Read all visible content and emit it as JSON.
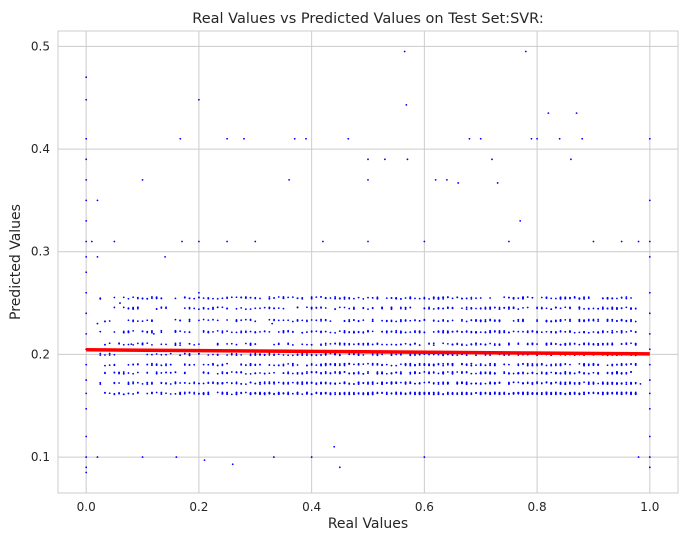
{
  "chart_data": {
    "type": "scatter",
    "title": "Real Values vs Predicted Values on Test Set:SVR:",
    "xlabel": "Real Values",
    "ylabel": "Predicted Values",
    "xlim": [
      -0.05,
      1.05
    ],
    "ylim": [
      0.065,
      0.515
    ],
    "xticks": [
      0.0,
      0.2,
      0.4,
      0.6,
      0.8,
      1.0
    ],
    "xtick_labels": [
      "0.0",
      "0.2",
      "0.4",
      "0.6",
      "0.8",
      "1.0"
    ],
    "yticks": [
      0.1,
      0.2,
      0.3,
      0.4,
      0.5
    ],
    "ytick_labels": [
      "0.1",
      "0.2",
      "0.3",
      "0.4",
      "0.5"
    ],
    "grid": true,
    "legend": "none",
    "series": [
      {
        "kind": "points",
        "color": "#0000ff",
        "points": [
          [
            0.0,
            0.47
          ],
          [
            0.0,
            0.448
          ],
          [
            0.0,
            0.41
          ],
          [
            0.0,
            0.39
          ],
          [
            0.0,
            0.37
          ],
          [
            0.0,
            0.35
          ],
          [
            0.0,
            0.33
          ],
          [
            0.0,
            0.31
          ],
          [
            0.0,
            0.295
          ],
          [
            0.0,
            0.28
          ],
          [
            0.0,
            0.26
          ],
          [
            0.0,
            0.24
          ],
          [
            0.0,
            0.22
          ],
          [
            0.0,
            0.205
          ],
          [
            0.0,
            0.19
          ],
          [
            0.0,
            0.175
          ],
          [
            0.0,
            0.162
          ],
          [
            0.0,
            0.147
          ],
          [
            0.0,
            0.12
          ],
          [
            0.0,
            0.1
          ],
          [
            0.0,
            0.09
          ],
          [
            0.0,
            0.085
          ],
          [
            0.01,
            0.31
          ],
          [
            0.02,
            0.35
          ],
          [
            0.02,
            0.295
          ],
          [
            0.02,
            0.23
          ],
          [
            0.02,
            0.1
          ],
          [
            0.05,
            0.31
          ],
          [
            0.05,
            0.19
          ],
          [
            0.06,
            0.25
          ],
          [
            0.08,
            0.21
          ],
          [
            0.1,
            0.37
          ],
          [
            0.1,
            0.1
          ],
          [
            0.12,
            0.22
          ],
          [
            0.14,
            0.295
          ],
          [
            0.16,
            0.1
          ],
          [
            0.167,
            0.41
          ],
          [
            0.17,
            0.31
          ],
          [
            0.2,
            0.448
          ],
          [
            0.2,
            0.31
          ],
          [
            0.2,
            0.26
          ],
          [
            0.21,
            0.097
          ],
          [
            0.25,
            0.41
          ],
          [
            0.25,
            0.31
          ],
          [
            0.26,
            0.093
          ],
          [
            0.28,
            0.41
          ],
          [
            0.3,
            0.31
          ],
          [
            0.33,
            0.23
          ],
          [
            0.333,
            0.1
          ],
          [
            0.36,
            0.37
          ],
          [
            0.37,
            0.41
          ],
          [
            0.39,
            0.41
          ],
          [
            0.4,
            0.1
          ],
          [
            0.42,
            0.31
          ],
          [
            0.44,
            0.11
          ],
          [
            0.45,
            0.09
          ],
          [
            0.465,
            0.41
          ],
          [
            0.5,
            0.37
          ],
          [
            0.5,
            0.39
          ],
          [
            0.5,
            0.31
          ],
          [
            0.53,
            0.39
          ],
          [
            0.565,
            0.495
          ],
          [
            0.568,
            0.443
          ],
          [
            0.57,
            0.39
          ],
          [
            0.6,
            0.31
          ],
          [
            0.6,
            0.1
          ],
          [
            0.62,
            0.37
          ],
          [
            0.64,
            0.37
          ],
          [
            0.66,
            0.367
          ],
          [
            0.68,
            0.41
          ],
          [
            0.7,
            0.41
          ],
          [
            0.72,
            0.39
          ],
          [
            0.73,
            0.367
          ],
          [
            0.75,
            0.31
          ],
          [
            0.77,
            0.33
          ],
          [
            0.78,
            0.495
          ],
          [
            0.79,
            0.41
          ],
          [
            0.8,
            0.41
          ],
          [
            0.82,
            0.435
          ],
          [
            0.84,
            0.41
          ],
          [
            0.86,
            0.39
          ],
          [
            0.87,
            0.435
          ],
          [
            0.88,
            0.41
          ],
          [
            0.9,
            0.31
          ],
          [
            0.95,
            0.31
          ],
          [
            0.98,
            0.31
          ],
          [
            0.98,
            0.1
          ],
          [
            1.0,
            0.41
          ],
          [
            1.0,
            0.35
          ],
          [
            1.0,
            0.31
          ],
          [
            1.0,
            0.295
          ],
          [
            1.0,
            0.26
          ],
          [
            1.0,
            0.24
          ],
          [
            1.0,
            0.22
          ],
          [
            1.0,
            0.205
          ],
          [
            1.0,
            0.19
          ],
          [
            1.0,
            0.175
          ],
          [
            1.0,
            0.162
          ],
          [
            1.0,
            0.147
          ],
          [
            1.0,
            0.12
          ],
          [
            1.0,
            0.1
          ],
          [
            1.0,
            0.09
          ]
        ]
      },
      {
        "kind": "cloud",
        "color": "#0000ff",
        "x_range": [
          0.02,
          0.98
        ],
        "levels": [
          0.162,
          0.172,
          0.182,
          0.19,
          0.2,
          0.21,
          0.222,
          0.233,
          0.245,
          0.255
        ],
        "count": 2600
      },
      {
        "kind": "line",
        "color": "#ff0000",
        "points": [
          [
            0.0,
            0.2045
          ],
          [
            1.0,
            0.2005
          ]
        ]
      }
    ]
  }
}
